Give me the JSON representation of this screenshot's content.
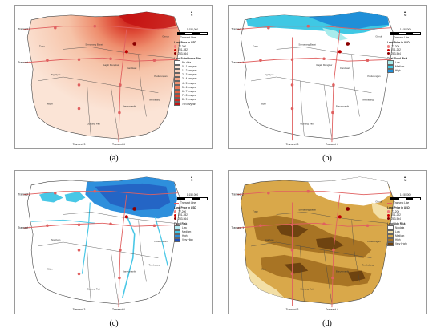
{
  "captions": [
    "(a)",
    "(b)",
    "(c)",
    "(d)"
  ],
  "colors": {
    "land": "#ffffff",
    "transect": "#e06060",
    "road": "#3a3a3a",
    "boundary": "#444444"
  },
  "map_labels": {
    "transect_1": "Transect 1",
    "transect_2": "Transect 2",
    "transect_3": "Transect 3",
    "transect_4": "Transect 4",
    "district_tugu": "Tugu",
    "district_ngaliyan": "Ngaliyan",
    "district_mijen": "Mijen",
    "district_gunungpati": "Gunung Pati",
    "district_banyumanik": "Banyumanik",
    "district_tembalang": "Tembalang",
    "district_pedurungan": "Pedurungan",
    "district_semarang_barat": "Semarang Barat",
    "district_gajah_mungkur": "Gajah Mungkur",
    "district_candisari": "Candisari",
    "district_genuk": "Genuk"
  },
  "panels": [
    {
      "id": "a",
      "scale": "1:150,000",
      "transect_line": "Transect Line",
      "price_title": "Land Price in USD",
      "price_items": [
        "77-200",
        "201-282",
        "283-564"
      ],
      "risk_title": "Land Subsidence Risk",
      "risk_items": [
        {
          "label": "No data",
          "color": "#ffffff"
        },
        {
          "label": "0 - 1 cm/year",
          "color": "#fbe4d6"
        },
        {
          "label": "1 - 2 cm/year",
          "color": "#f8d2bd"
        },
        {
          "label": "2 - 3 cm/year",
          "color": "#f5bea4"
        },
        {
          "label": "3 - 4 cm/year",
          "color": "#f2a98b"
        },
        {
          "label": "4 - 5 cm/year",
          "color": "#ee9272"
        },
        {
          "label": "5 - 6 cm/year",
          "color": "#ea7a5a"
        },
        {
          "label": "6 - 7 cm/year",
          "color": "#e46044"
        },
        {
          "label": "7 - 8 cm/year",
          "color": "#dd4431"
        },
        {
          "label": "8 - 9 cm/year",
          "color": "#d12a22"
        },
        {
          "label": "> 9 cm/year",
          "color": "#c01414"
        }
      ]
    },
    {
      "id": "b",
      "scale": "1:150,000",
      "transect_line": "Transect Line",
      "price_title": "Land Price in USD",
      "price_items": [
        "77-200",
        "201-282",
        "283-564"
      ],
      "risk_title": "Tidal Flood Risk",
      "risk_items": [
        {
          "label": "Low",
          "color": "#a8ecec"
        },
        {
          "label": "Medium",
          "color": "#3fc8e4"
        },
        {
          "label": "High",
          "color": "#1f8fd8"
        }
      ]
    },
    {
      "id": "c",
      "scale": "1:150,000",
      "transect_line": "Transect Line",
      "price_title": "Land Price in USD",
      "price_items": [
        "77-200",
        "201-282",
        "283-564"
      ],
      "risk_title": "Flood Risk",
      "risk_items": [
        {
          "label": "Low",
          "color": "#b3ecf4"
        },
        {
          "label": "Medium",
          "color": "#48c7e6"
        },
        {
          "label": "High",
          "color": "#2e8fdc"
        },
        {
          "label": "Very High",
          "color": "#1f4fb8"
        }
      ]
    },
    {
      "id": "d",
      "scale": "1:150,000",
      "transect_line": "Transect Line",
      "price_title": "Land Price in USD",
      "price_items": [
        "77-200",
        "201-282",
        "283-564"
      ],
      "risk_title": "Landslide Risk",
      "risk_items": [
        {
          "label": "No data",
          "color": "#ffffff"
        },
        {
          "label": "Low",
          "color": "#f3dfa6"
        },
        {
          "label": "Medium",
          "color": "#d9a84a"
        },
        {
          "label": "High",
          "color": "#a87424"
        },
        {
          "label": "Very High",
          "color": "#6e4310"
        }
      ]
    }
  ]
}
